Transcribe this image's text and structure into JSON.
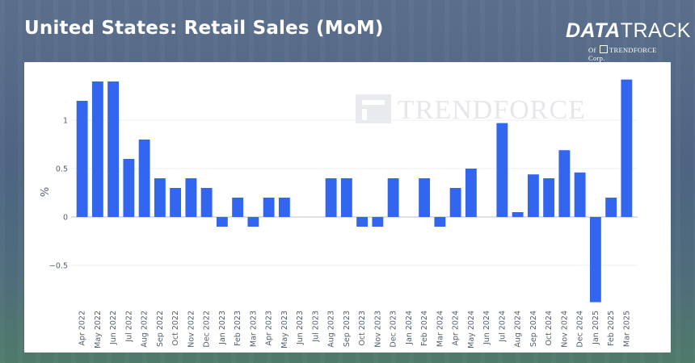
{
  "header": {
    "title": "United States: Retail Sales (MoM)"
  },
  "logo": {
    "brand_bold": "DATA",
    "brand_light": "TRACK",
    "sub_prefix": "Of",
    "sub_company": "TRENDFORCE",
    "sub_suffix": "Corp."
  },
  "watermark": {
    "text": "TRENDFORCE",
    "icon": "trendforce-logo-icon"
  },
  "colors": {
    "bar": "#3366ee",
    "grid": "#eceff3",
    "zero_line": "#c8ccd2"
  },
  "chart_data": {
    "type": "bar",
    "title": "United States: Retail Sales (MoM)",
    "xlabel": "",
    "ylabel": "%",
    "ylim": [
      -0.9,
      1.5
    ],
    "yticks": [
      -0.5,
      0,
      0.5,
      1
    ],
    "ytick_labels": [
      "−0.5",
      "0",
      "0.5",
      "1"
    ],
    "grid": true,
    "legend": "none",
    "categories": [
      "Apr 2022",
      "May 2022",
      "Jun 2022",
      "Jul 2022",
      "Aug 2022",
      "Sep 2022",
      "Oct 2022",
      "Nov 2022",
      "Dec 2022",
      "Jan 2023",
      "Feb 2023",
      "Mar 2023",
      "Apr 2023",
      "May 2023",
      "Jun 2023",
      "Jul 2023",
      "Aug 2023",
      "Sep 2023",
      "Oct 2023",
      "Nov 2023",
      "Dec 2023",
      "Jan 2024",
      "Feb 2024",
      "Mar 2024",
      "Apr 2024",
      "May 2024",
      "Jun 2024",
      "Jul 2024",
      "Aug 2024",
      "Sep 2024",
      "Oct 2024",
      "Nov 2024",
      "Dec 2024",
      "Jan 2025",
      "Feb 2025",
      "Mar 2025"
    ],
    "values": [
      1.2,
      1.4,
      1.4,
      0.6,
      0.8,
      0.4,
      0.3,
      0.4,
      0.3,
      -0.1,
      0.2,
      -0.1,
      0.2,
      0.2,
      0,
      0,
      0.4,
      0.4,
      -0.1,
      -0.1,
      0.4,
      0,
      0.4,
      -0.1,
      0.3,
      0.5,
      0,
      0.97,
      0.05,
      0.44,
      0.4,
      0.69,
      0.46,
      -0.88,
      0.2,
      1.42
    ]
  }
}
